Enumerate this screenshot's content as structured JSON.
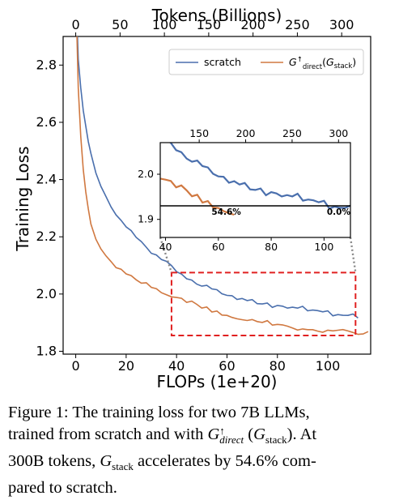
{
  "chart_data": {
    "type": "line",
    "top_axis": {
      "label": "Tokens (Billions)",
      "ticks": [
        "0",
        "50",
        "100",
        "150",
        "200",
        "250",
        "300"
      ]
    },
    "x_axis": {
      "label": "FLOPs (1e+20)",
      "ticks": [
        "0",
        "20",
        "40",
        "60",
        "80",
        "100"
      ],
      "range": [
        -5,
        117
      ]
    },
    "y_axis": {
      "label": "Training Loss",
      "ticks": [
        "1.8",
        "2.0",
        "2.2",
        "2.4",
        "2.6",
        "2.8"
      ],
      "range": [
        1.79,
        2.9
      ]
    },
    "legend_position": "top-right",
    "series": [
      {
        "name": "scratch",
        "color": "#4a6fad",
        "x": [
          0.5,
          1,
          2,
          3,
          4,
          5,
          6,
          8,
          10,
          12,
          14,
          16,
          18,
          20,
          22,
          24,
          26,
          28,
          30,
          32,
          34,
          36,
          38,
          40,
          42,
          44,
          46,
          48,
          50,
          52,
          54,
          56,
          58,
          60,
          62,
          64,
          66,
          68,
          70,
          72,
          74,
          76,
          78,
          80,
          82,
          84,
          86,
          88,
          90,
          92,
          94,
          96,
          98,
          100,
          102,
          104,
          106,
          108,
          110,
          112
        ],
        "y": [
          2.95,
          2.82,
          2.72,
          2.64,
          2.58,
          2.53,
          2.49,
          2.42,
          2.38,
          2.34,
          2.31,
          2.28,
          2.26,
          2.24,
          2.22,
          2.2,
          2.18,
          2.16,
          2.14,
          2.13,
          2.12,
          2.11,
          2.1,
          2.08,
          2.07,
          2.06,
          2.05,
          2.04,
          2.03,
          2.03,
          2.02,
          2.01,
          2.0,
          1.99,
          1.99,
          1.98,
          1.98,
          1.98,
          1.98,
          1.97,
          1.97,
          1.97,
          1.96,
          1.96,
          1.96,
          1.95,
          1.95,
          1.95,
          1.95,
          1.94,
          1.94,
          1.94,
          1.94,
          1.94,
          1.93,
          1.93,
          1.93,
          1.93,
          1.93,
          1.92
        ]
      },
      {
        "name": "G↑direct (Gstack)",
        "color": "#d07840",
        "x": [
          0.5,
          1,
          2,
          3,
          4,
          5,
          6,
          8,
          10,
          12,
          14,
          16,
          18,
          20,
          22,
          24,
          26,
          28,
          30,
          32,
          34,
          36,
          38,
          40,
          42,
          44,
          46,
          48,
          50,
          52,
          54,
          56,
          58,
          60,
          62,
          64,
          66,
          68,
          70,
          72,
          74,
          76,
          78,
          80,
          82,
          84,
          86,
          88,
          90,
          92,
          94,
          96,
          98,
          100,
          102,
          104,
          106,
          108,
          110,
          112,
          114,
          116
        ],
        "y": [
          2.9,
          2.72,
          2.55,
          2.44,
          2.36,
          2.3,
          2.25,
          2.19,
          2.16,
          2.13,
          2.11,
          2.09,
          2.08,
          2.07,
          2.06,
          2.05,
          2.04,
          2.04,
          2.03,
          2.02,
          2.01,
          2.0,
          1.99,
          1.99,
          1.98,
          1.97,
          1.97,
          1.96,
          1.95,
          1.95,
          1.94,
          1.94,
          1.93,
          1.93,
          1.92,
          1.92,
          1.91,
          1.91,
          1.91,
          1.9,
          1.9,
          1.9,
          1.89,
          1.89,
          1.89,
          1.89,
          1.88,
          1.88,
          1.88,
          1.88,
          1.88,
          1.87,
          1.87,
          1.87,
          1.87,
          1.87,
          1.87,
          1.87,
          1.86,
          1.86,
          1.86,
          1.87
        ]
      }
    ],
    "inset": {
      "x_ticks": [
        "40",
        "60",
        "80",
        "100"
      ],
      "x_range": [
        38,
        110
      ],
      "top_ticks": [
        "150",
        "200",
        "250",
        "300"
      ],
      "y_ticks": [
        "1.9",
        "2.0"
      ],
      "y_range": [
        1.86,
        2.07
      ],
      "zoom_box": {
        "x": [
          38,
          111
        ],
        "y": [
          1.855,
          2.075
        ]
      },
      "annotations": [
        {
          "text": "54.6%",
          "x": 63
        },
        {
          "text": "0.0%",
          "x": 110
        }
      ],
      "reference_y": 1.93
    }
  },
  "caption": {
    "l1": "Figure 1: The training loss for two 7B LLMs,",
    "l2a": "trained from scratch and with ",
    "g": "G",
    "arrow": "↑",
    "direct": "direct",
    "l2b": " (",
    "g2": "G",
    "stack": "stack",
    "l2c": "). At",
    "l3a": "300B tokens, ",
    "g3": "G",
    "stack2": "stack",
    "l3b": " accelerates by 54.6% com-",
    "l4": "pared to scratch."
  }
}
